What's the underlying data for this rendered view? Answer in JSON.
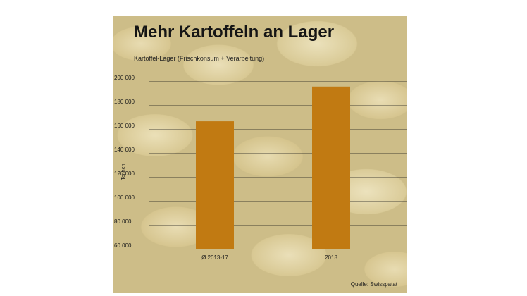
{
  "chart_data": {
    "type": "bar",
    "title": "Mehr Kartoffeln an Lager",
    "subtitle": "Kartoffel-Lager (Frischkonsum + Verarbeitung)",
    "ylabel": "Tonnen",
    "xlabel": "",
    "categories": [
      "Ø 2013-17",
      "2018"
    ],
    "values": [
      167000,
      196000
    ],
    "ylim": [
      60000,
      200000
    ],
    "yticks": [
      60000,
      80000,
      100000,
      120000,
      140000,
      160000,
      180000,
      200000
    ],
    "ytick_labels": [
      "60 000",
      "80 000",
      "100 000",
      "120 000",
      "140 000",
      "160 000",
      "180 000",
      "200 000"
    ],
    "grid": true,
    "bar_color": "#c17a12",
    "source": "Quelle: Swisspatat"
  }
}
